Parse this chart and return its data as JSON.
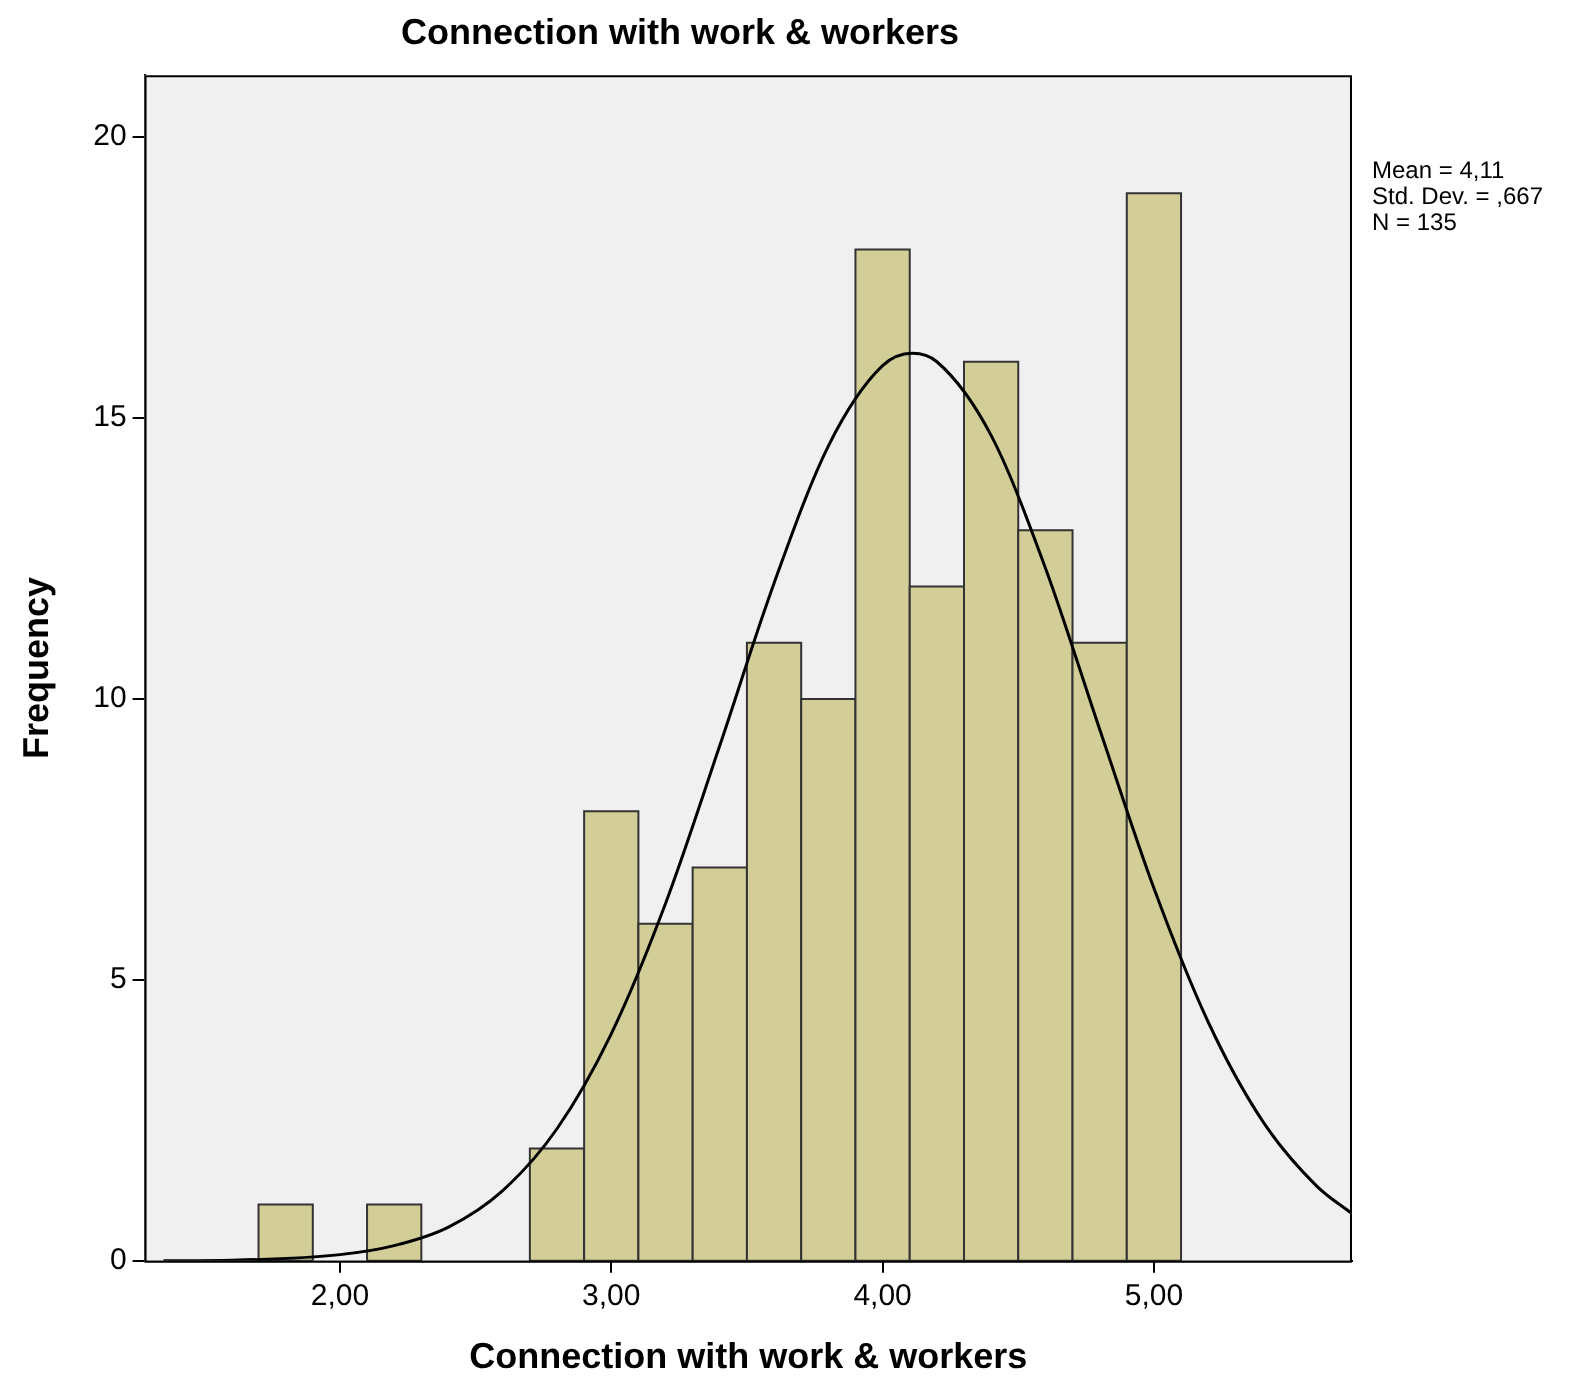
{
  "chart_data": {
    "type": "histogram",
    "title": "Connection with work & workers",
    "xlabel": "Connection with work & workers",
    "ylabel": "Frequency",
    "bins": [
      1.7,
      1.9,
      2.1,
      2.3,
      2.5,
      2.7,
      2.9,
      3.1,
      3.3,
      3.5,
      3.7,
      3.9,
      4.1,
      4.3,
      4.5,
      4.7,
      4.9,
      5.1
    ],
    "values": [
      1,
      0,
      1,
      0,
      0,
      2,
      8,
      6,
      7,
      11,
      10,
      18,
      12,
      16,
      13,
      11,
      19
    ],
    "color": "#d3ce98",
    "series": [
      {
        "type": "line",
        "color": "#000000",
        "x": [
          1.35,
          1.6,
          2.0,
          2.2,
          2.4,
          2.6,
          2.8,
          3.0,
          3.2,
          3.4,
          3.6,
          3.8,
          4.0,
          4.11,
          4.2,
          4.4,
          4.6,
          4.8,
          5.0,
          5.2,
          5.4,
          5.6,
          5.73
        ],
        "values": [
          0.0,
          0.01,
          0.11,
          0.27,
          0.6,
          1.25,
          2.35,
          4.04,
          6.36,
          9.17,
          12.06,
          14.5,
          15.93,
          16.15,
          16.0,
          14.69,
          12.33,
          9.46,
          6.63,
          4.25,
          2.49,
          1.33,
          0.84
        ]
      }
    ],
    "xlim": [
      1.28,
      5.73
    ],
    "xticks": [
      {
        "value": 2,
        "label": "2,00"
      },
      {
        "value": 3,
        "label": "3,00"
      },
      {
        "value": 4,
        "label": "4,00"
      },
      {
        "value": 5,
        "label": "5,00"
      }
    ],
    "ylim": [
      0,
      21.1
    ],
    "yticks": [
      0,
      5,
      10,
      15,
      20
    ],
    "grid": false,
    "legend": false,
    "marker": "none",
    "line_style": "solid",
    "annotations": [
      "Mean = 4,11",
      "Std. Dev. = ,667",
      "N = 135"
    ]
  }
}
